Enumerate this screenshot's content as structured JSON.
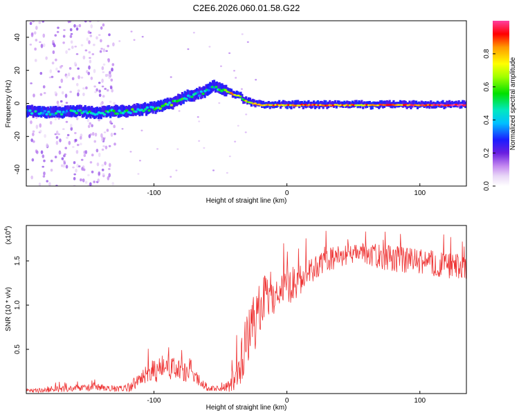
{
  "title": "C2E6.2026.060.01.58.G22",
  "chart_data": [
    {
      "type": "heatmap",
      "xlabel": "Height of straight line (km)",
      "ylabel": "Frequency (Hz)",
      "xlim": [
        -196,
        135
      ],
      "ylim": [
        -50,
        50
      ],
      "xticks": [
        -100,
        0,
        100
      ],
      "yticks": [
        -40,
        -20,
        0,
        20,
        40
      ],
      "track": {
        "heights": [
          -196,
          -180,
          -160,
          -140,
          -130,
          -120,
          -110,
          -100,
          -90,
          -80,
          -75,
          -70,
          -65,
          -60,
          -55,
          -50,
          -45,
          -42,
          -40,
          -38,
          -35,
          -33,
          -30,
          -25,
          -20,
          -10,
          0,
          20,
          40,
          60,
          80,
          100,
          120,
          135
        ],
        "frequencies": [
          -5,
          -6,
          -5,
          -6,
          -5,
          -5,
          -4,
          -3,
          -1,
          2,
          4,
          5,
          6,
          8,
          10,
          9,
          7,
          6,
          5,
          5,
          4,
          2,
          1,
          0,
          -1,
          -1,
          -1,
          -1,
          -1,
          -1,
          -1,
          -1,
          -1,
          -1
        ],
        "amplitudes": [
          0.35,
          0.4,
          0.4,
          0.45,
          0.45,
          0.5,
          0.5,
          0.5,
          0.55,
          0.5,
          0.5,
          0.45,
          0.45,
          0.4,
          0.4,
          0.5,
          0.7,
          0.75,
          0.75,
          0.8,
          0.6,
          0.6,
          0.7,
          0.8,
          0.85,
          0.8,
          0.8,
          0.85,
          0.8,
          0.8,
          0.85,
          0.9,
          0.95,
          0.95
        ]
      },
      "colorbar": {
        "label": "Normalized spectral amplitude",
        "range": [
          0,
          1
        ],
        "ticks": [
          "0.0",
          "0.2",
          "0.4",
          "0.6",
          "0.8"
        ],
        "tick_values": [
          0,
          0.2,
          0.4,
          0.6,
          0.8
        ]
      }
    },
    {
      "type": "line",
      "xlabel": "Height of straight line (km)",
      "ylabel": "SNR (10 * v/v)",
      "multiplier": "(x10",
      "multiplier_exp": "4",
      "multiplier_close": ")",
      "xlim": [
        -196,
        135
      ],
      "ylim": [
        0,
        1.9
      ],
      "xticks": [
        -100,
        0,
        100
      ],
      "yticks": [
        "0.5",
        "1.0",
        "1.5"
      ],
      "ytick_values": [
        0.5,
        1.0,
        1.5
      ],
      "color": "#ee3333",
      "series": {
        "name": "SNR",
        "x": [
          -196,
          -180,
          -160,
          -140,
          -130,
          -120,
          -110,
          -100,
          -90,
          -80,
          -70,
          -60,
          -50,
          -45,
          -40,
          -35,
          -30,
          -25,
          -20,
          -15,
          -10,
          -5,
          0,
          10,
          20,
          30,
          40,
          50,
          60,
          70,
          80,
          90,
          100,
          110,
          120,
          135
        ],
        "y": [
          0.03,
          0.04,
          0.06,
          0.07,
          0.05,
          0.06,
          0.15,
          0.25,
          0.3,
          0.25,
          0.2,
          0.07,
          0.05,
          0.08,
          0.15,
          0.35,
          0.6,
          0.75,
          0.95,
          1.1,
          1.15,
          1.15,
          1.2,
          1.3,
          1.4,
          1.5,
          1.55,
          1.58,
          1.58,
          1.55,
          1.52,
          1.5,
          1.5,
          1.47,
          1.45,
          1.42
        ],
        "noise": [
          0.02,
          0.03,
          0.04,
          0.04,
          0.04,
          0.05,
          0.1,
          0.15,
          0.15,
          0.12,
          0.08,
          0.04,
          0.03,
          0.06,
          0.15,
          0.25,
          0.3,
          0.35,
          0.3,
          0.3,
          0.25,
          0.22,
          0.22,
          0.18,
          0.15,
          0.14,
          0.13,
          0.12,
          0.12,
          0.14,
          0.15,
          0.15,
          0.15,
          0.15,
          0.15,
          0.15
        ]
      }
    }
  ]
}
